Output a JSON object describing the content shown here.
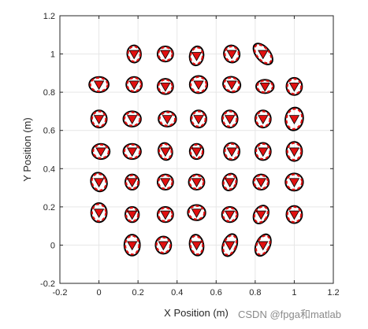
{
  "chart_data": {
    "type": "scatter",
    "xlabel": "X Position (m)",
    "ylabel": "Y Position (m)",
    "xlim": [
      -0.2,
      1.2
    ],
    "ylim": [
      -0.2,
      1.2
    ],
    "xticks": [
      -0.2,
      0,
      0.2,
      0.4,
      0.6,
      0.8,
      1,
      1.2
    ],
    "yticks": [
      -0.2,
      0,
      0.2,
      0.4,
      0.6,
      0.8,
      1,
      1.2
    ],
    "xtick_labels": [
      "-0.2",
      "0",
      "0.2",
      "0.4",
      "0.6",
      "0.8",
      "1",
      "1.2"
    ],
    "ytick_labels": [
      "-0.2",
      "0",
      "0.2",
      "0.4",
      "0.6",
      "0.8",
      "1",
      "1.2"
    ],
    "grid": true,
    "colors": {
      "marker": "#e01010",
      "ellipse_black": "#000000",
      "ellipse_red": "#e01010",
      "grid": "#e6e6e6",
      "axis": "#262626"
    },
    "marker": "red-triangle-down",
    "points": [
      {
        "x": 0.18,
        "y": 1.0
      },
      {
        "x": 0.34,
        "y": 1.0
      },
      {
        "x": 0.5,
        "y": 0.99
      },
      {
        "x": 0.68,
        "y": 1.0
      },
      {
        "x": 0.84,
        "y": 1.0
      },
      {
        "x": 0.0,
        "y": 0.84
      },
      {
        "x": 0.18,
        "y": 0.84
      },
      {
        "x": 0.34,
        "y": 0.83
      },
      {
        "x": 0.51,
        "y": 0.84
      },
      {
        "x": 0.68,
        "y": 0.84
      },
      {
        "x": 0.85,
        "y": 0.83
      },
      {
        "x": 1.0,
        "y": 0.83
      },
      {
        "x": 0.0,
        "y": 0.66
      },
      {
        "x": 0.17,
        "y": 0.66
      },
      {
        "x": 0.35,
        "y": 0.66
      },
      {
        "x": 0.51,
        "y": 0.66
      },
      {
        "x": 0.67,
        "y": 0.66
      },
      {
        "x": 0.84,
        "y": 0.66
      },
      {
        "x": 1.0,
        "y": 0.66
      },
      {
        "x": 0.01,
        "y": 0.49
      },
      {
        "x": 0.17,
        "y": 0.49
      },
      {
        "x": 0.34,
        "y": 0.49
      },
      {
        "x": 0.5,
        "y": 0.49
      },
      {
        "x": 0.68,
        "y": 0.49
      },
      {
        "x": 0.84,
        "y": 0.49
      },
      {
        "x": 1.0,
        "y": 0.49
      },
      {
        "x": 0.0,
        "y": 0.33
      },
      {
        "x": 0.17,
        "y": 0.33
      },
      {
        "x": 0.34,
        "y": 0.33
      },
      {
        "x": 0.5,
        "y": 0.33
      },
      {
        "x": 0.67,
        "y": 0.33
      },
      {
        "x": 0.83,
        "y": 0.33
      },
      {
        "x": 1.0,
        "y": 0.33
      },
      {
        "x": 0.0,
        "y": 0.17
      },
      {
        "x": 0.17,
        "y": 0.16
      },
      {
        "x": 0.34,
        "y": 0.16
      },
      {
        "x": 0.5,
        "y": 0.17
      },
      {
        "x": 0.67,
        "y": 0.16
      },
      {
        "x": 0.83,
        "y": 0.16
      },
      {
        "x": 1.0,
        "y": 0.16
      },
      {
        "x": 0.17,
        "y": 0.0
      },
      {
        "x": 0.33,
        "y": 0.0
      },
      {
        "x": 0.5,
        "y": 0.0
      },
      {
        "x": 0.67,
        "y": 0.0
      },
      {
        "x": 0.84,
        "y": 0.0
      }
    ],
    "ellipses": [
      {
        "x": 0.18,
        "y": 1.0,
        "rx": 0.035,
        "ry": 0.045,
        "angle": 5
      },
      {
        "x": 0.34,
        "y": 1.0,
        "rx": 0.04,
        "ry": 0.04,
        "angle": 0
      },
      {
        "x": 0.5,
        "y": 0.99,
        "rx": 0.035,
        "ry": 0.05,
        "angle": -10
      },
      {
        "x": 0.68,
        "y": 1.0,
        "rx": 0.04,
        "ry": 0.045,
        "angle": 15
      },
      {
        "x": 0.84,
        "y": 1.0,
        "rx": 0.035,
        "ry": 0.065,
        "angle": 40
      },
      {
        "x": 0.0,
        "y": 0.84,
        "rx": 0.05,
        "ry": 0.04,
        "angle": 0
      },
      {
        "x": 0.18,
        "y": 0.84,
        "rx": 0.04,
        "ry": 0.04,
        "angle": 0
      },
      {
        "x": 0.34,
        "y": 0.83,
        "rx": 0.04,
        "ry": 0.04,
        "angle": 0
      },
      {
        "x": 0.51,
        "y": 0.84,
        "rx": 0.045,
        "ry": 0.045,
        "angle": 0
      },
      {
        "x": 0.68,
        "y": 0.84,
        "rx": 0.045,
        "ry": 0.04,
        "angle": -20
      },
      {
        "x": 0.85,
        "y": 0.83,
        "rx": 0.045,
        "ry": 0.035,
        "angle": 0
      },
      {
        "x": 1.0,
        "y": 0.83,
        "rx": 0.04,
        "ry": 0.045,
        "angle": 0
      },
      {
        "x": 0.0,
        "y": 0.66,
        "rx": 0.04,
        "ry": 0.045,
        "angle": 0
      },
      {
        "x": 0.17,
        "y": 0.66,
        "rx": 0.045,
        "ry": 0.04,
        "angle": 0
      },
      {
        "x": 0.35,
        "y": 0.66,
        "rx": 0.045,
        "ry": 0.04,
        "angle": 0
      },
      {
        "x": 0.51,
        "y": 0.66,
        "rx": 0.04,
        "ry": 0.045,
        "angle": 0
      },
      {
        "x": 0.67,
        "y": 0.66,
        "rx": 0.04,
        "ry": 0.045,
        "angle": 0
      },
      {
        "x": 0.84,
        "y": 0.66,
        "rx": 0.04,
        "ry": 0.045,
        "angle": 0
      },
      {
        "x": 1.0,
        "y": 0.66,
        "rx": 0.045,
        "ry": 0.06,
        "angle": -10
      },
      {
        "x": 0.01,
        "y": 0.49,
        "rx": 0.045,
        "ry": 0.04,
        "angle": 0
      },
      {
        "x": 0.17,
        "y": 0.49,
        "rx": 0.045,
        "ry": 0.04,
        "angle": 0
      },
      {
        "x": 0.34,
        "y": 0.49,
        "rx": 0.035,
        "ry": 0.045,
        "angle": 15
      },
      {
        "x": 0.5,
        "y": 0.49,
        "rx": 0.035,
        "ry": 0.04,
        "angle": 0
      },
      {
        "x": 0.68,
        "y": 0.49,
        "rx": 0.04,
        "ry": 0.045,
        "angle": 0
      },
      {
        "x": 0.84,
        "y": 0.49,
        "rx": 0.04,
        "ry": 0.045,
        "angle": 0
      },
      {
        "x": 1.0,
        "y": 0.49,
        "rx": 0.04,
        "ry": 0.05,
        "angle": 0
      },
      {
        "x": 0.0,
        "y": 0.33,
        "rx": 0.04,
        "ry": 0.05,
        "angle": 20
      },
      {
        "x": 0.17,
        "y": 0.33,
        "rx": 0.035,
        "ry": 0.04,
        "angle": 0
      },
      {
        "x": 0.34,
        "y": 0.33,
        "rx": 0.04,
        "ry": 0.04,
        "angle": 0
      },
      {
        "x": 0.5,
        "y": 0.33,
        "rx": 0.04,
        "ry": 0.04,
        "angle": 0
      },
      {
        "x": 0.67,
        "y": 0.33,
        "rx": 0.035,
        "ry": 0.045,
        "angle": -20
      },
      {
        "x": 0.83,
        "y": 0.33,
        "rx": 0.04,
        "ry": 0.04,
        "angle": 0
      },
      {
        "x": 1.0,
        "y": 0.33,
        "rx": 0.045,
        "ry": 0.045,
        "angle": 0
      },
      {
        "x": 0.0,
        "y": 0.17,
        "rx": 0.04,
        "ry": 0.05,
        "angle": 0
      },
      {
        "x": 0.17,
        "y": 0.16,
        "rx": 0.035,
        "ry": 0.04,
        "angle": 0
      },
      {
        "x": 0.34,
        "y": 0.16,
        "rx": 0.04,
        "ry": 0.04,
        "angle": 0
      },
      {
        "x": 0.5,
        "y": 0.17,
        "rx": 0.045,
        "ry": 0.04,
        "angle": 0
      },
      {
        "x": 0.67,
        "y": 0.16,
        "rx": 0.04,
        "ry": 0.04,
        "angle": 0
      },
      {
        "x": 0.83,
        "y": 0.16,
        "rx": 0.035,
        "ry": 0.05,
        "angle": -30
      },
      {
        "x": 1.0,
        "y": 0.16,
        "rx": 0.04,
        "ry": 0.045,
        "angle": 0
      },
      {
        "x": 0.17,
        "y": 0.0,
        "rx": 0.04,
        "ry": 0.055,
        "angle": 0
      },
      {
        "x": 0.33,
        "y": 0.0,
        "rx": 0.04,
        "ry": 0.045,
        "angle": 0
      },
      {
        "x": 0.5,
        "y": 0.0,
        "rx": 0.035,
        "ry": 0.055,
        "angle": 10
      },
      {
        "x": 0.67,
        "y": 0.0,
        "rx": 0.035,
        "ry": 0.06,
        "angle": -20
      },
      {
        "x": 0.84,
        "y": 0.0,
        "rx": 0.035,
        "ry": 0.06,
        "angle": -25
      }
    ]
  },
  "watermark": "CSDN @fpga和matlab"
}
